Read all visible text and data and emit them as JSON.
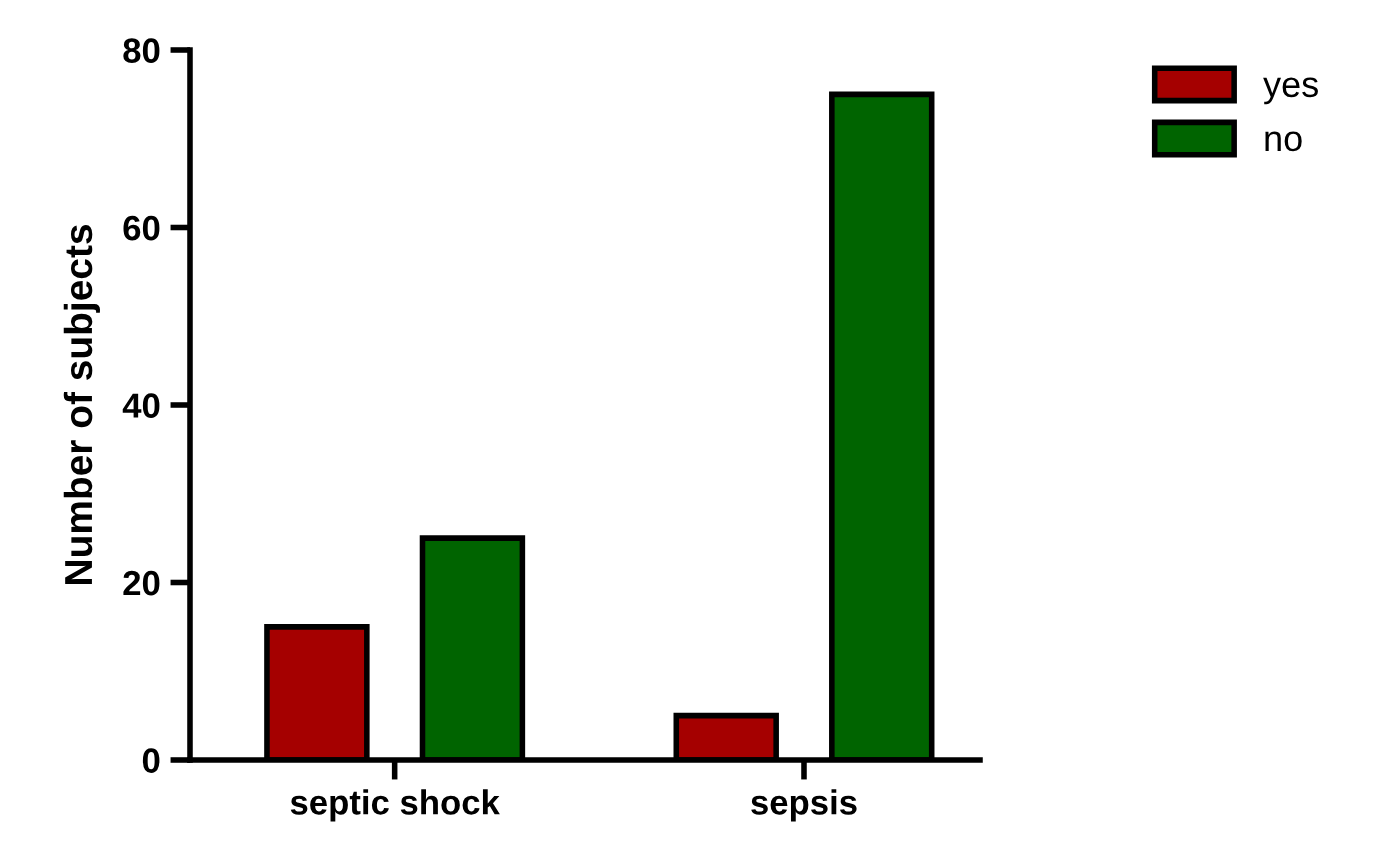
{
  "chart_data": {
    "type": "bar",
    "ylabel": "Number of subjects",
    "categories": [
      "septic shock",
      "sepsis"
    ],
    "series": [
      {
        "name": "yes",
        "color": "#a50000",
        "values": [
          15,
          5
        ]
      },
      {
        "name": "no",
        "color": "#006400",
        "values": [
          25,
          75
        ]
      }
    ],
    "ylim": [
      0,
      80
    ],
    "yticks": [
      0,
      20,
      40,
      60,
      80
    ],
    "grid": false,
    "legend": "top right"
  }
}
